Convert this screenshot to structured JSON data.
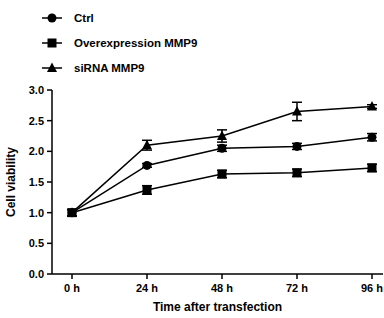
{
  "chart_data": {
    "type": "line",
    "x_label": "Time after transfection",
    "y_label": "Cell viability",
    "categories": [
      "0 h",
      "24 h",
      "48 h",
      "72 h",
      "96 h"
    ],
    "series": [
      {
        "name": "Ctrl",
        "color": "#000000",
        "marker": "circle",
        "line_style": "solid",
        "values": [
          1.0,
          1.77,
          2.05,
          2.08,
          2.23
        ],
        "errors": [
          0.05,
          0.03,
          0.05,
          0.05,
          0.06
        ]
      },
      {
        "name": "Overexpression MMP9",
        "color": "#000000",
        "marker": "square",
        "line_style": "solid",
        "values": [
          1.0,
          1.37,
          1.63,
          1.65,
          1.73
        ],
        "errors": [
          0.05,
          0.07,
          0.06,
          0.06,
          0.06
        ]
      },
      {
        "name": "siRNA MMP9",
        "color": "#000000",
        "marker": "triangle",
        "line_style": "solid",
        "values": [
          1.0,
          2.1,
          2.25,
          2.65,
          2.73
        ],
        "errors": [
          0.05,
          0.08,
          0.1,
          0.15,
          0.03
        ]
      }
    ],
    "ylim": [
      0,
      3
    ],
    "yticks": [
      {
        "value": 0,
        "label": "0.0"
      },
      {
        "value": 0.5,
        "label": "0.5"
      },
      {
        "value": 1,
        "label": "1.0"
      },
      {
        "value": 1.5,
        "label": "1.5"
      },
      {
        "value": 2,
        "label": "2.0"
      },
      {
        "value": 2.5,
        "label": "2.5"
      },
      {
        "value": 3,
        "label": "3.0"
      }
    ],
    "grid": false,
    "legend": "upper left"
  }
}
